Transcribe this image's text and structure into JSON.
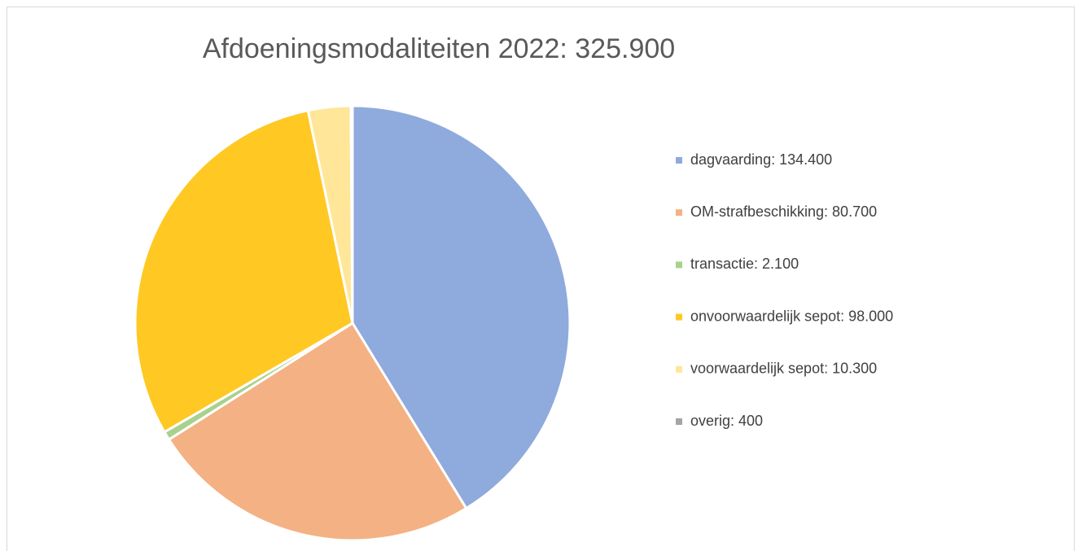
{
  "chart_data": {
    "type": "pie",
    "title": "Afdoeningsmodaliteiten 2022: 325.900",
    "categories": [
      "dagvaarding: 134.400",
      "OM-strafbeschikking: 80.700",
      "transactie: 2.100",
      "onvoorwaardelijk sepot: 98.000",
      "voorwaardelijk sepot: 10.300",
      "overig: 400"
    ],
    "values": [
      134400,
      80700,
      2100,
      98000,
      10300,
      400
    ],
    "colors": [
      "#8faadc",
      "#f4b183",
      "#a9d18e",
      "#ffc823",
      "#ffe699",
      "#a5a5a5"
    ],
    "legend": "right"
  }
}
